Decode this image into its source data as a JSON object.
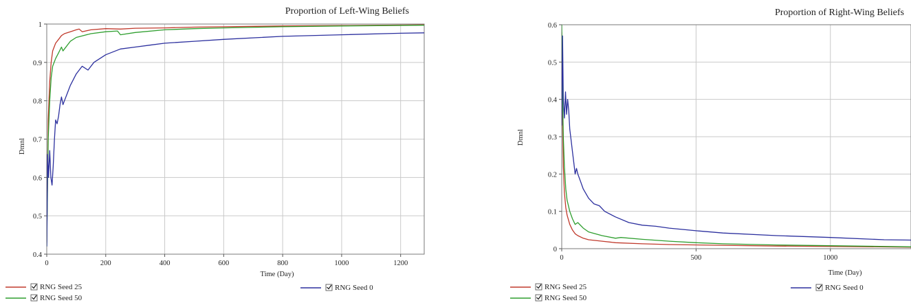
{
  "chart_data": [
    {
      "type": "line",
      "title": "Proportion of Left-Wing Beliefs",
      "xlabel": "Time (Day)",
      "ylabel": "Dmnl",
      "xlim": [
        0,
        1280
      ],
      "ylim": [
        0.4,
        1.0
      ],
      "xticks": [
        0,
        200,
        400,
        600,
        800,
        1000,
        1200
      ],
      "yticks": [
        0.4,
        0.5,
        0.6,
        0.7,
        0.8,
        0.9,
        1.0
      ],
      "ytick_labels": [
        "0.4",
        "0.5",
        "0.6",
        "0.7",
        "0.8",
        "0.9",
        "1"
      ],
      "grid": true,
      "legend_position": "bottom",
      "series": [
        {
          "name": "RNG Seed 25",
          "color": "#c0392b",
          "x": [
            0,
            5,
            10,
            15,
            20,
            30,
            40,
            50,
            60,
            80,
            100,
            110,
            120,
            150,
            200,
            250,
            300,
            400,
            500,
            600,
            800,
            1000,
            1280
          ],
          "y": [
            0.43,
            0.75,
            0.85,
            0.9,
            0.93,
            0.95,
            0.96,
            0.97,
            0.975,
            0.98,
            0.985,
            0.987,
            0.98,
            0.985,
            0.988,
            0.987,
            0.989,
            0.99,
            0.992,
            0.993,
            0.995,
            0.996,
            0.998
          ]
        },
        {
          "name": "RNG Seed 50",
          "color": "#2e9e2e",
          "x": [
            0,
            5,
            10,
            15,
            20,
            30,
            40,
            50,
            55,
            60,
            80,
            100,
            150,
            200,
            240,
            250,
            300,
            400,
            500,
            600,
            800,
            1000,
            1280
          ],
          "y": [
            0.42,
            0.7,
            0.8,
            0.86,
            0.89,
            0.91,
            0.925,
            0.94,
            0.93,
            0.935,
            0.955,
            0.965,
            0.975,
            0.98,
            0.982,
            0.972,
            0.978,
            0.985,
            0.988,
            0.99,
            0.993,
            0.995,
            0.997
          ]
        },
        {
          "name": "RNG Seed 0",
          "color": "#2b2f9e",
          "x": [
            0,
            3,
            6,
            10,
            14,
            18,
            22,
            26,
            30,
            35,
            40,
            45,
            50,
            55,
            60,
            70,
            80,
            100,
            120,
            140,
            160,
            200,
            250,
            300,
            350,
            400,
            500,
            600,
            800,
            1000,
            1200,
            1280
          ],
          "y": [
            0.42,
            0.66,
            0.6,
            0.67,
            0.6,
            0.58,
            0.63,
            0.7,
            0.75,
            0.74,
            0.76,
            0.79,
            0.81,
            0.79,
            0.8,
            0.82,
            0.84,
            0.87,
            0.89,
            0.88,
            0.9,
            0.92,
            0.935,
            0.94,
            0.945,
            0.95,
            0.955,
            0.96,
            0.968,
            0.972,
            0.976,
            0.977
          ]
        }
      ]
    },
    {
      "type": "line",
      "title": "Proportion of Right-Wing Beliefs",
      "xlabel": "Time (Day)",
      "ylabel": "Dmnl",
      "xlim": [
        0,
        1300
      ],
      "ylim": [
        0,
        0.6
      ],
      "xticks": [
        0,
        500,
        1000
      ],
      "yticks": [
        0,
        0.1,
        0.2,
        0.3,
        0.4,
        0.5,
        0.6
      ],
      "ytick_labels": [
        "0",
        "0.1",
        "0.2",
        "0.3",
        "0.4",
        "0.5",
        "0.6"
      ],
      "grid": true,
      "legend_position": "bottom",
      "series": [
        {
          "name": "RNG Seed 25",
          "color": "#c0392b",
          "x": [
            0,
            3,
            6,
            10,
            15,
            20,
            30,
            40,
            50,
            60,
            80,
            100,
            150,
            200,
            300,
            400,
            600,
            800,
            1000,
            1300
          ],
          "y": [
            0.58,
            0.35,
            0.22,
            0.15,
            0.11,
            0.09,
            0.065,
            0.05,
            0.04,
            0.035,
            0.028,
            0.024,
            0.02,
            0.016,
            0.013,
            0.011,
            0.009,
            0.007,
            0.006,
            0.004
          ]
        },
        {
          "name": "RNG Seed 50",
          "color": "#2e9e2e",
          "x": [
            0,
            3,
            6,
            10,
            15,
            20,
            30,
            40,
            50,
            60,
            80,
            100,
            150,
            200,
            220,
            300,
            400,
            500,
            600,
            800,
            1000,
            1300
          ],
          "y": [
            0.6,
            0.42,
            0.3,
            0.22,
            0.16,
            0.13,
            0.1,
            0.08,
            0.065,
            0.07,
            0.055,
            0.045,
            0.035,
            0.028,
            0.03,
            0.025,
            0.02,
            0.016,
            0.013,
            0.01,
            0.008,
            0.005
          ]
        },
        {
          "name": "RNG Seed 0",
          "color": "#2b2f9e",
          "x": [
            0,
            3,
            6,
            10,
            14,
            18,
            22,
            26,
            30,
            35,
            40,
            45,
            50,
            55,
            60,
            70,
            80,
            100,
            120,
            140,
            160,
            200,
            250,
            300,
            350,
            400,
            500,
            600,
            800,
            1000,
            1200,
            1300
          ],
          "y": [
            0.33,
            0.57,
            0.4,
            0.35,
            0.42,
            0.36,
            0.4,
            0.37,
            0.32,
            0.29,
            0.26,
            0.23,
            0.2,
            0.215,
            0.2,
            0.18,
            0.16,
            0.135,
            0.12,
            0.115,
            0.1,
            0.085,
            0.07,
            0.063,
            0.06,
            0.055,
            0.048,
            0.042,
            0.035,
            0.03,
            0.024,
            0.023
          ]
        }
      ]
    }
  ]
}
